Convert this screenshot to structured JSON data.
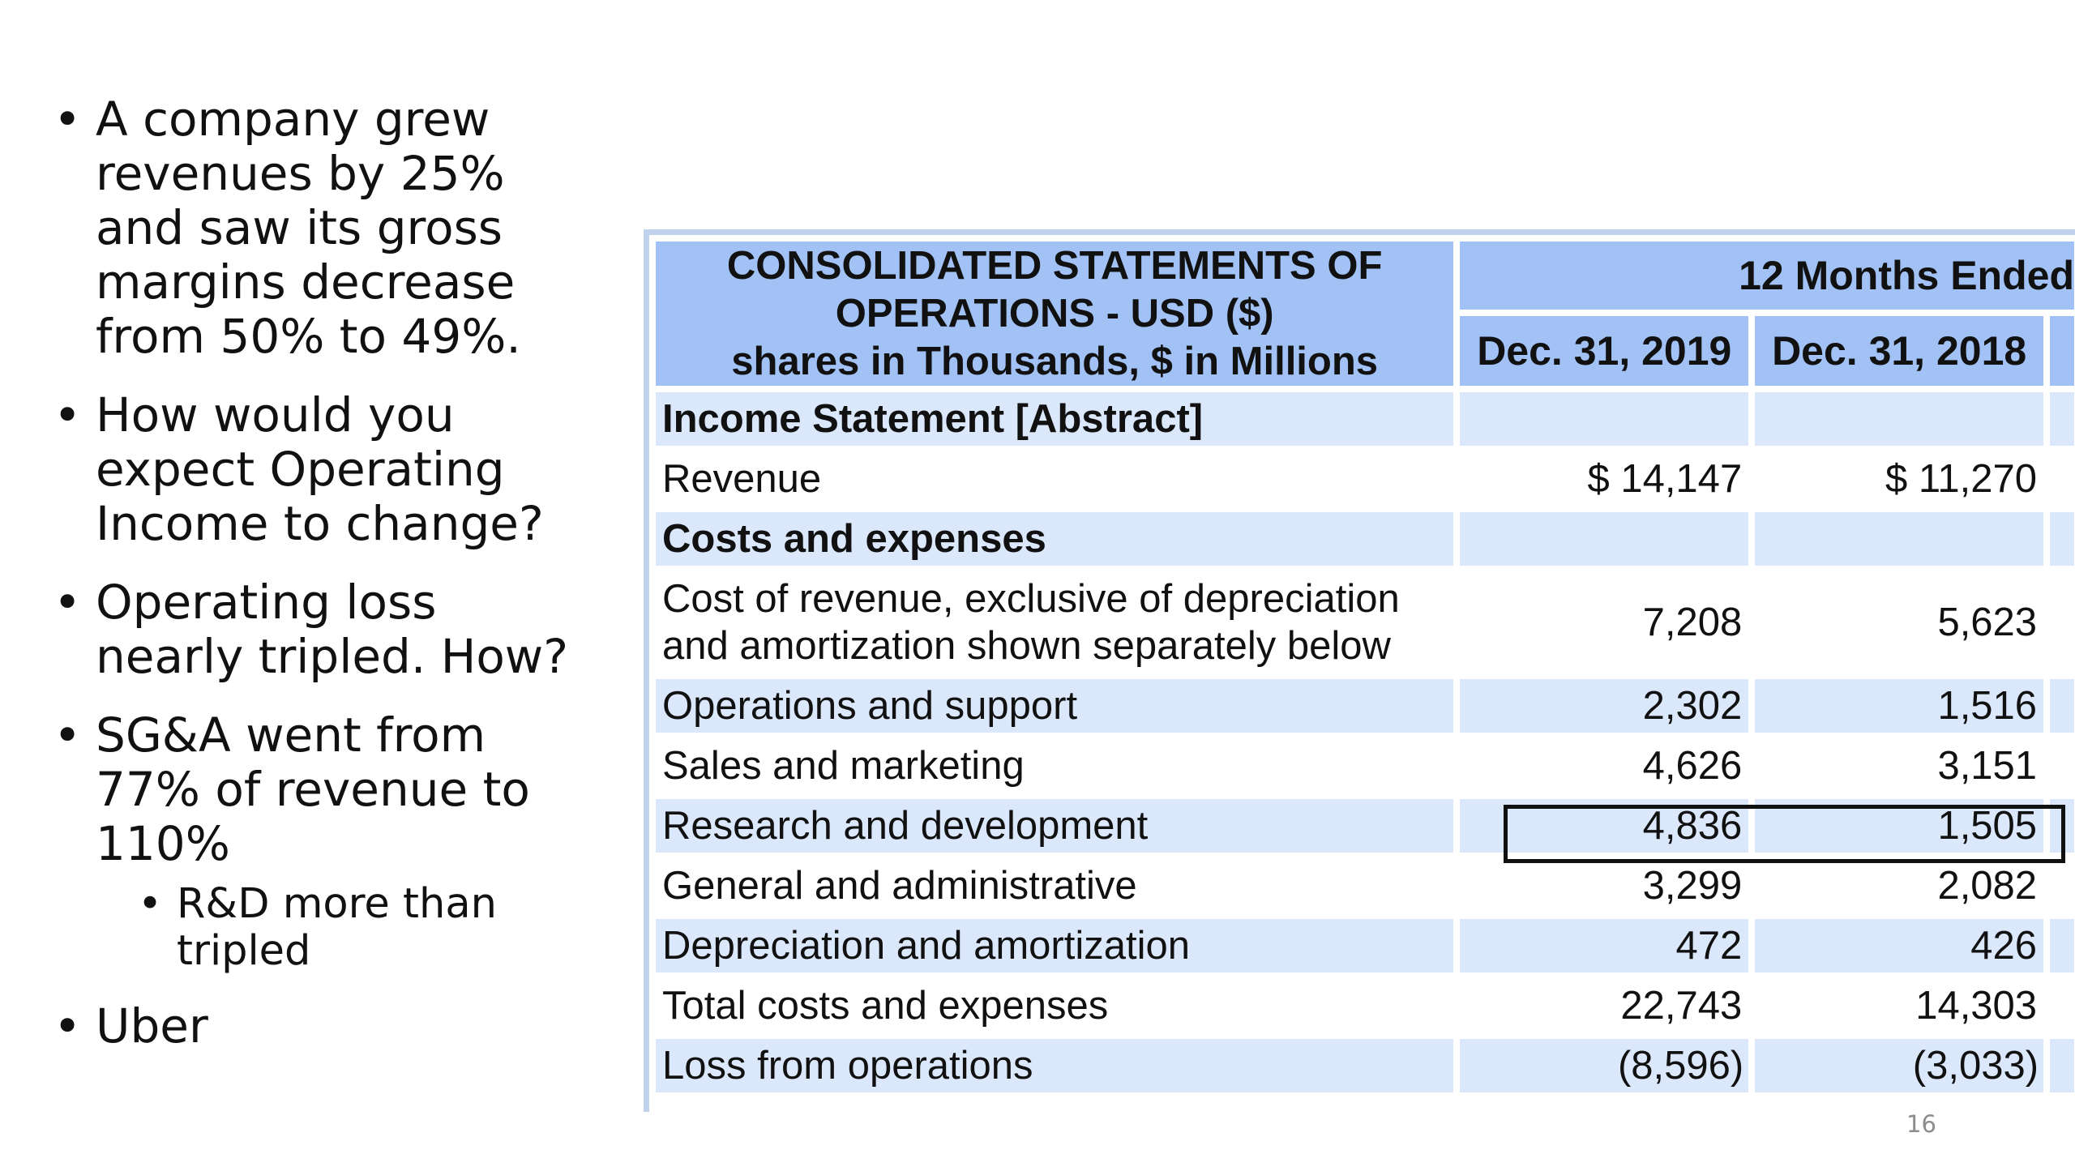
{
  "bullets": [
    {
      "text": "A company grew revenues by 25% and saw its gross margins decrease from 50% to 49%."
    },
    {
      "text": "How would you expect Operating Income to change?"
    },
    {
      "text": "Operating loss nearly tripled. How?"
    },
    {
      "text": "SG&A went from 77% of revenue to 110%",
      "sub": [
        "R&D more than tripled"
      ]
    },
    {
      "text": "Uber"
    }
  ],
  "table": {
    "title_lines": [
      "CONSOLIDATED STATEMENTS OF",
      "OPERATIONS - USD ($)",
      "shares in Thousands, $ in Millions"
    ],
    "period_header": "12 Months Ended",
    "columns": [
      "Dec. 31, 2019",
      "Dec. 31, 2018"
    ],
    "rows": [
      {
        "label": "Income Statement [Abstract]",
        "values": [
          "",
          ""
        ]
      },
      {
        "label": "Revenue",
        "values": [
          "$ 14,147",
          "$ 11,270"
        ]
      },
      {
        "label": "Costs and expenses",
        "values": [
          "",
          ""
        ]
      },
      {
        "label": "Cost of revenue, exclusive of depreciation and amortization shown separately below",
        "values": [
          "7,208",
          "5,623"
        ]
      },
      {
        "label": "Operations and support",
        "values": [
          "2,302",
          "1,516"
        ]
      },
      {
        "label": "Sales and marketing",
        "values": [
          "4,626",
          "3,151"
        ]
      },
      {
        "label": "Research and development",
        "values": [
          "4,836",
          "1,505"
        ]
      },
      {
        "label": "General and administrative",
        "values": [
          "3,299",
          "2,082"
        ]
      },
      {
        "label": "Depreciation and amortization",
        "values": [
          "472",
          "426"
        ]
      },
      {
        "label": "Total costs and expenses",
        "values": [
          "22,743",
          "14,303"
        ]
      },
      {
        "label": "Loss from operations",
        "values": [
          "(8,596)",
          "(3,033)"
        ]
      }
    ],
    "highlighted_row": "Research and development"
  },
  "page_number": "16"
}
